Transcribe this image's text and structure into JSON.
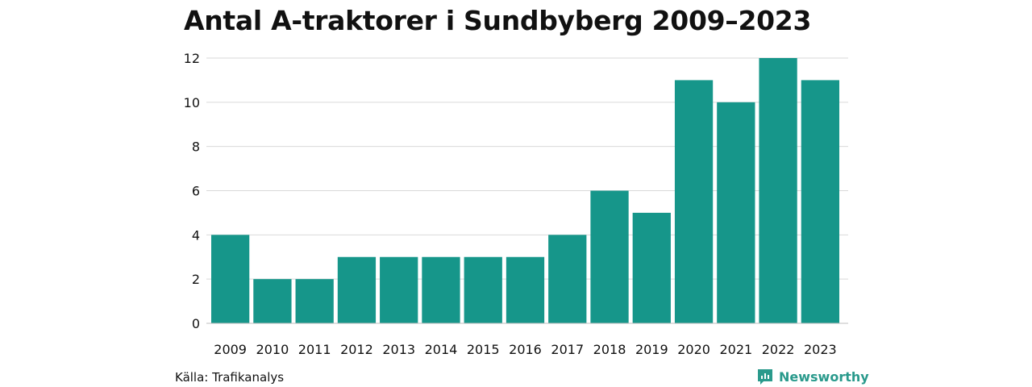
{
  "chart_data": {
    "type": "bar",
    "title": "Antal A-traktorer i Sundbyberg 2009–2023",
    "categories": [
      "2009",
      "2010",
      "2011",
      "2012",
      "2013",
      "2014",
      "2015",
      "2016",
      "2017",
      "2018",
      "2019",
      "2020",
      "2021",
      "2022",
      "2023"
    ],
    "values": [
      4,
      2,
      2,
      3,
      3,
      3,
      3,
      3,
      4,
      6,
      5,
      11,
      10,
      12,
      11
    ],
    "xlabel": "",
    "ylabel": "",
    "ylim": [
      0,
      12
    ],
    "yticks": [
      0,
      2,
      4,
      6,
      8,
      10,
      12
    ],
    "grid": true,
    "bar_color": "#16968a"
  },
  "footer": {
    "source": "Källa: Trafikanalys",
    "brand": "Newsworthy"
  },
  "colors": {
    "brand": "#2a9a8c",
    "grid": "#d9d9d9"
  }
}
